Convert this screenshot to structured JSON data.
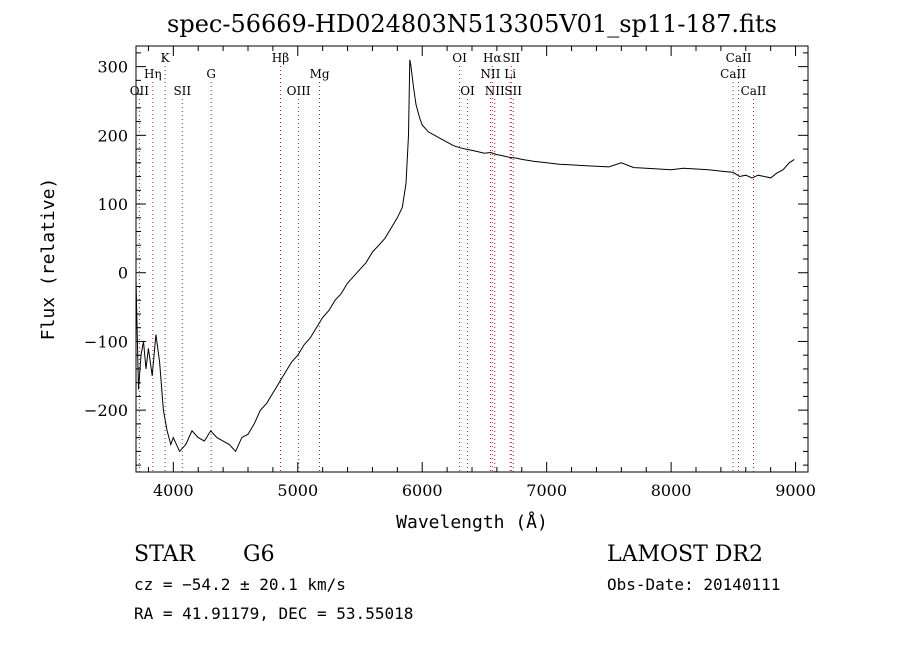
{
  "chart_data": {
    "type": "line",
    "title": "spec-56669-HD024803N513305V01_sp11-187.fits",
    "xlabel": "Wavelength (Å)",
    "ylabel": "Flux (relative)",
    "xlim": [
      3700,
      9100
    ],
    "ylim": [
      -290,
      330
    ],
    "x_ticks": [
      4000,
      5000,
      6000,
      7000,
      8000,
      9000
    ],
    "y_ticks": [
      -200,
      -100,
      0,
      100,
      200,
      300
    ],
    "x_tick_labels": [
      "4000",
      "5000",
      "6000",
      "7000",
      "8000",
      "9000"
    ],
    "y_tick_labels": [
      "−200",
      "−100",
      "0",
      "100",
      "200",
      "300"
    ],
    "grid": false,
    "series": [
      {
        "x": [
          3700,
          3720,
          3740,
          3760,
          3780,
          3800,
          3830,
          3860,
          3890,
          3920,
          3950,
          3980,
          4000,
          4050,
          4100,
          4150,
          4200,
          4250,
          4300,
          4350,
          4400,
          4450,
          4500,
          4550,
          4600,
          4650,
          4700,
          4750,
          4800,
          4850,
          4900,
          4950,
          5000,
          5050,
          5100,
          5150,
          5200,
          5250,
          5300,
          5350,
          5400,
          5450,
          5500,
          5550,
          5600,
          5650,
          5700,
          5750,
          5800,
          5840,
          5870,
          5890,
          5900,
          5910,
          5930,
          5950,
          5980,
          6000,
          6050,
          6100,
          6150,
          6200,
          6250,
          6300,
          6350,
          6400,
          6450,
          6500,
          6550,
          6600,
          6650,
          6700,
          6750,
          6800,
          6900,
          7000,
          7100,
          7200,
          7300,
          7400,
          7500,
          7600,
          7700,
          7800,
          7900,
          8000,
          8100,
          8200,
          8300,
          8400,
          8500,
          8550,
          8600,
          8650,
          8700,
          8750,
          8800,
          8850,
          8900,
          8950,
          8990
        ],
        "y": [
          -10,
          -170,
          -120,
          -100,
          -140,
          -110,
          -150,
          -90,
          -130,
          -200,
          -230,
          -250,
          -240,
          -260,
          -250,
          -230,
          -240,
          -245,
          -230,
          -240,
          -245,
          -250,
          -260,
          -240,
          -235,
          -220,
          -200,
          -190,
          -175,
          -160,
          -145,
          -130,
          -120,
          -105,
          -95,
          -80,
          -65,
          -55,
          -40,
          -30,
          -15,
          -5,
          5,
          15,
          30,
          40,
          50,
          65,
          80,
          95,
          130,
          200,
          310,
          300,
          270,
          245,
          225,
          215,
          205,
          200,
          195,
          190,
          185,
          182,
          180,
          178,
          176,
          174,
          175,
          172,
          170,
          168,
          167,
          165,
          162,
          160,
          158,
          157,
          156,
          155,
          154,
          160,
          153,
          152,
          151,
          150,
          152,
          151,
          150,
          148,
          146,
          140,
          142,
          138,
          142,
          140,
          138,
          145,
          150,
          160,
          165
        ]
      }
    ],
    "lines_top": [
      {
        "label": "K",
        "x": 3934
      },
      {
        "label": "Hβ",
        "x": 4861
      },
      {
        "label": "OI",
        "x": 6300
      },
      {
        "label": "Hα",
        "x": 6563
      },
      {
        "label": "SII",
        "x": 6716
      },
      {
        "label": "CaII",
        "x": 8542
      }
    ],
    "lines_mid": [
      {
        "label": "Hη",
        "x": 3835
      },
      {
        "label": "G",
        "x": 4304
      },
      {
        "label": "Mg",
        "x": 5175
      },
      {
        "label": "NII",
        "x": 6548
      },
      {
        "label": "Li",
        "x": 6707
      },
      {
        "label": "CaII",
        "x": 8498
      }
    ],
    "lines_low": [
      {
        "label": "OII",
        "x": 3727
      },
      {
        "label": "SII",
        "x": 4072
      },
      {
        "label": "OIII",
        "x": 5007
      },
      {
        "label": "OI",
        "x": 6364
      },
      {
        "label": "NII",
        "x": 6583
      },
      {
        "label": "SII",
        "x": 6731
      },
      {
        "label": "CaII",
        "x": 8662
      }
    ]
  },
  "info": {
    "class": "STAR",
    "subclass": "G6",
    "cz": "cz = −54.2 ± 20.1 km/s",
    "coords": "RA =  41.91179, DEC =  53.55018",
    "survey": "LAMOST DR2",
    "obs_date": "Obs-Date: 20140111"
  }
}
